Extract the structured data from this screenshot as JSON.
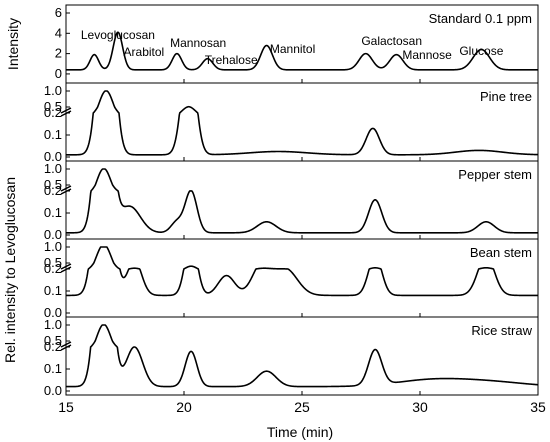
{
  "chart_data": {
    "type": "line",
    "xlabel": "Time (min)",
    "xlim": [
      15,
      35
    ],
    "x_ticks": [
      15,
      20,
      25,
      30,
      35
    ],
    "shared_ylabel": "Rel. intensity to Levoglucosan",
    "line_color": "#000000",
    "panels": [
      {
        "label": "Standard 0.1 ppm",
        "ylabel": "Intensity",
        "ylim": [
          -0.5,
          6
        ],
        "y_ticks": [
          0,
          2,
          4,
          6
        ],
        "y_break": false,
        "baseline": 0.4,
        "peaks": [
          {
            "name": "",
            "x": 16.2,
            "height": 1.5,
            "width": 0.18
          },
          {
            "name": "Levoglucosan",
            "x": 17.2,
            "height": 3.7,
            "width": 0.2
          },
          {
            "name": "Arabitol",
            "x": 19.7,
            "height": 1.6,
            "width": 0.2
          },
          {
            "name": "Mannosan",
            "x": 21.0,
            "height": 1.1,
            "width": 0.22
          },
          {
            "name": "Trehalose",
            "x": 23.5,
            "height": 2.4,
            "width": 0.25
          },
          {
            "name": "Mannitol",
            "x": 27.7,
            "height": 1.6,
            "width": 0.28
          },
          {
            "name": "Galactosan",
            "x": 29.0,
            "height": 1.5,
            "width": 0.28
          },
          {
            "name": "Mannose",
            "x": 32.6,
            "height": 2.0,
            "width": 0.35
          }
        ],
        "peak_labels": [
          {
            "text": "Levoglucosan",
            "x": 17.2
          },
          {
            "text": "Arabitol",
            "x": 18.3
          },
          {
            "text": "Mannosan",
            "x": 20.6
          },
          {
            "text": "Trehalose",
            "x": 22.0
          },
          {
            "text": "Mannitol",
            "x": 24.6
          },
          {
            "text": "Galactosan",
            "x": 28.8
          },
          {
            "text": "Mannose",
            "x": 30.3
          },
          {
            "text": "Glucose",
            "x": 32.6
          }
        ]
      },
      {
        "label": "Pine tree",
        "ylabel": "",
        "ylim": [
          0,
          1.0
        ],
        "y_ticks": [
          0.0,
          0.1,
          0.2,
          0.5,
          1.0
        ],
        "y_break": true,
        "baseline": 0.01,
        "peaks": [
          {
            "name": "Levoglucosan",
            "x": 16.7,
            "height": 1.0,
            "width": 0.3
          },
          {
            "name": "Mannosan",
            "x": 20.2,
            "height": 0.5,
            "width": 0.28
          },
          {
            "name": "Galactosan",
            "x": 28.0,
            "height": 0.12,
            "width": 0.28
          },
          {
            "name": "",
            "x": 24.0,
            "height": 0.015,
            "width": 1.2
          },
          {
            "name": "",
            "x": 32.5,
            "height": 0.02,
            "width": 1.0
          }
        ]
      },
      {
        "label": "Pepper stem",
        "ylabel": "",
        "ylim": [
          0,
          1.0
        ],
        "y_ticks": [
          0.0,
          0.1,
          0.2,
          0.5,
          1.0
        ],
        "y_break": true,
        "baseline": 0.01,
        "peaks": [
          {
            "name": "Levoglucosan",
            "x": 16.6,
            "height": 1.0,
            "width": 0.3
          },
          {
            "name": "",
            "x": 17.7,
            "height": 0.12,
            "width": 0.45
          },
          {
            "name": "Mannosan",
            "x": 20.3,
            "height": 0.19,
            "width": 0.25
          },
          {
            "name": "",
            "x": 19.7,
            "height": 0.05,
            "width": 0.25
          },
          {
            "name": "Trehalose",
            "x": 23.5,
            "height": 0.05,
            "width": 0.4
          },
          {
            "name": "Galactosan",
            "x": 28.1,
            "height": 0.15,
            "width": 0.28
          },
          {
            "name": "Glucose",
            "x": 32.8,
            "height": 0.05,
            "width": 0.35
          }
        ]
      },
      {
        "label": "Bean stem",
        "ylabel": "",
        "ylim": [
          0,
          1.0
        ],
        "y_ticks": [
          0.0,
          0.1,
          0.2,
          0.5,
          1.0
        ],
        "y_break": true,
        "baseline": 0.08,
        "peaks": [
          {
            "name": "Levoglucosan",
            "x": 16.6,
            "height": 1.0,
            "width": 0.32
          },
          {
            "name": "",
            "x": 17.9,
            "height": 0.16,
            "width": 0.3
          },
          {
            "name": "Mannosan",
            "x": 20.3,
            "height": 0.26,
            "width": 0.25
          },
          {
            "name": "",
            "x": 21.8,
            "height": 0.09,
            "width": 0.35
          },
          {
            "name": "Trehalose",
            "x": 23.3,
            "height": 0.14,
            "width": 0.4
          },
          {
            "name": "",
            "x": 24.3,
            "height": 0.12,
            "width": 0.5
          },
          {
            "name": "Galactosan",
            "x": 28.1,
            "height": 0.18,
            "width": 0.28
          },
          {
            "name": "Glucose",
            "x": 32.8,
            "height": 0.18,
            "width": 0.35
          }
        ]
      },
      {
        "label": "Rice straw",
        "ylabel": "",
        "ylim": [
          0,
          1.0
        ],
        "y_ticks": [
          0.0,
          0.1,
          0.2,
          0.5,
          1.0
        ],
        "y_break": true,
        "baseline": 0.02,
        "peaks": [
          {
            "name": "Levoglucosan",
            "x": 16.6,
            "height": 1.0,
            "width": 0.3
          },
          {
            "name": "",
            "x": 17.9,
            "height": 0.18,
            "width": 0.35
          },
          {
            "name": "Mannosan",
            "x": 20.3,
            "height": 0.16,
            "width": 0.25
          },
          {
            "name": "Trehalose",
            "x": 23.5,
            "height": 0.07,
            "width": 0.4
          },
          {
            "name": "Galactosan",
            "x": 28.1,
            "height": 0.16,
            "width": 0.28
          },
          {
            "name": "",
            "x": 30.5,
            "height": 0.03,
            "width": 1.5
          },
          {
            "name": "",
            "x": 33.0,
            "height": 0.02,
            "width": 1.5
          }
        ]
      }
    ]
  }
}
